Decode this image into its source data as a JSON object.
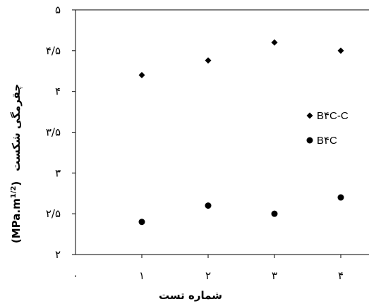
{
  "chart_data": {
    "type": "scatter",
    "x_ticks": [
      {
        "value": 0,
        "label": "۰"
      },
      {
        "value": 1,
        "label": "۱"
      },
      {
        "value": 2,
        "label": "۲"
      },
      {
        "value": 3,
        "label": "۳"
      },
      {
        "value": 4,
        "label": "۴"
      }
    ],
    "y_ticks": [
      {
        "value": 2,
        "label": "۲"
      },
      {
        "value": 2.5,
        "label": "۲/۵"
      },
      {
        "value": 3,
        "label": "۳"
      },
      {
        "value": 3.5,
        "label": "۳/۵"
      },
      {
        "value": 4,
        "label": "۴"
      },
      {
        "value": 4.5,
        "label": "۴/۵"
      },
      {
        "value": 5,
        "label": "۵"
      }
    ],
    "xlim": [
      0,
      4.4
    ],
    "ylim": [
      2,
      5
    ],
    "xlabel": "شماره تست",
    "ylabel": "چقرمگی شکست",
    "ylabel_unit": "(MPa.m",
    "ylabel_unit_exp": "1/2",
    "ylabel_unit_close": ")",
    "grid": false,
    "legend_position": "right",
    "series": [
      {
        "name": "B۴C-C",
        "marker": "diamond",
        "color": "#000000",
        "x": [
          1,
          2,
          3,
          4
        ],
        "y": [
          4.2,
          4.38,
          4.6,
          4.5
        ]
      },
      {
        "name": "B۴C",
        "marker": "circle",
        "color": "#000000",
        "x": [
          1,
          2,
          3,
          4
        ],
        "y": [
          2.4,
          2.6,
          2.5,
          2.7
        ]
      }
    ]
  }
}
